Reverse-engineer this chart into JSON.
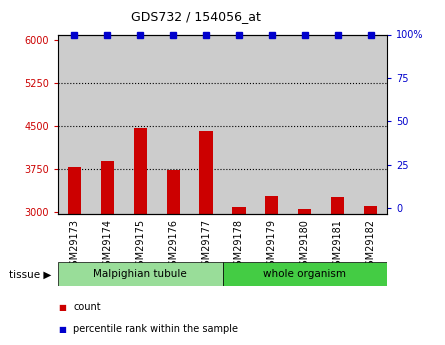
{
  "title": "GDS732 / 154056_at",
  "categories": [
    "GSM29173",
    "GSM29174",
    "GSM29175",
    "GSM29176",
    "GSM29177",
    "GSM29178",
    "GSM29179",
    "GSM29180",
    "GSM29181",
    "GSM29182"
  ],
  "bar_values": [
    3790,
    3890,
    4470,
    3740,
    4420,
    3090,
    3290,
    3060,
    3260,
    3110
  ],
  "percentile_values": [
    100,
    100,
    100,
    100,
    100,
    100,
    100,
    100,
    100,
    100
  ],
  "bar_color": "#cc0000",
  "dot_color": "#0000cc",
  "ylim_left": [
    2970,
    6100
  ],
  "ylim_right": [
    -3.3333,
    100
  ],
  "yticks_left": [
    3000,
    3750,
    4500,
    5250,
    6000
  ],
  "yticks_right": [
    0,
    25,
    50,
    75,
    100
  ],
  "grid_lines": [
    3750,
    4500,
    5250
  ],
  "tissue_groups": [
    {
      "label": "Malpighian tubule",
      "start": 0,
      "end": 5,
      "color": "#99dd99"
    },
    {
      "label": "whole organism",
      "start": 5,
      "end": 10,
      "color": "#44cc44"
    }
  ],
  "legend_items": [
    {
      "label": "count",
      "color": "#cc0000"
    },
    {
      "label": "percentile rank within the sample",
      "color": "#0000cc"
    }
  ],
  "tissue_label": "tissue ▶",
  "bar_bg_color": "#cccccc",
  "label_fontsize": 7,
  "tick_fontsize": 7
}
